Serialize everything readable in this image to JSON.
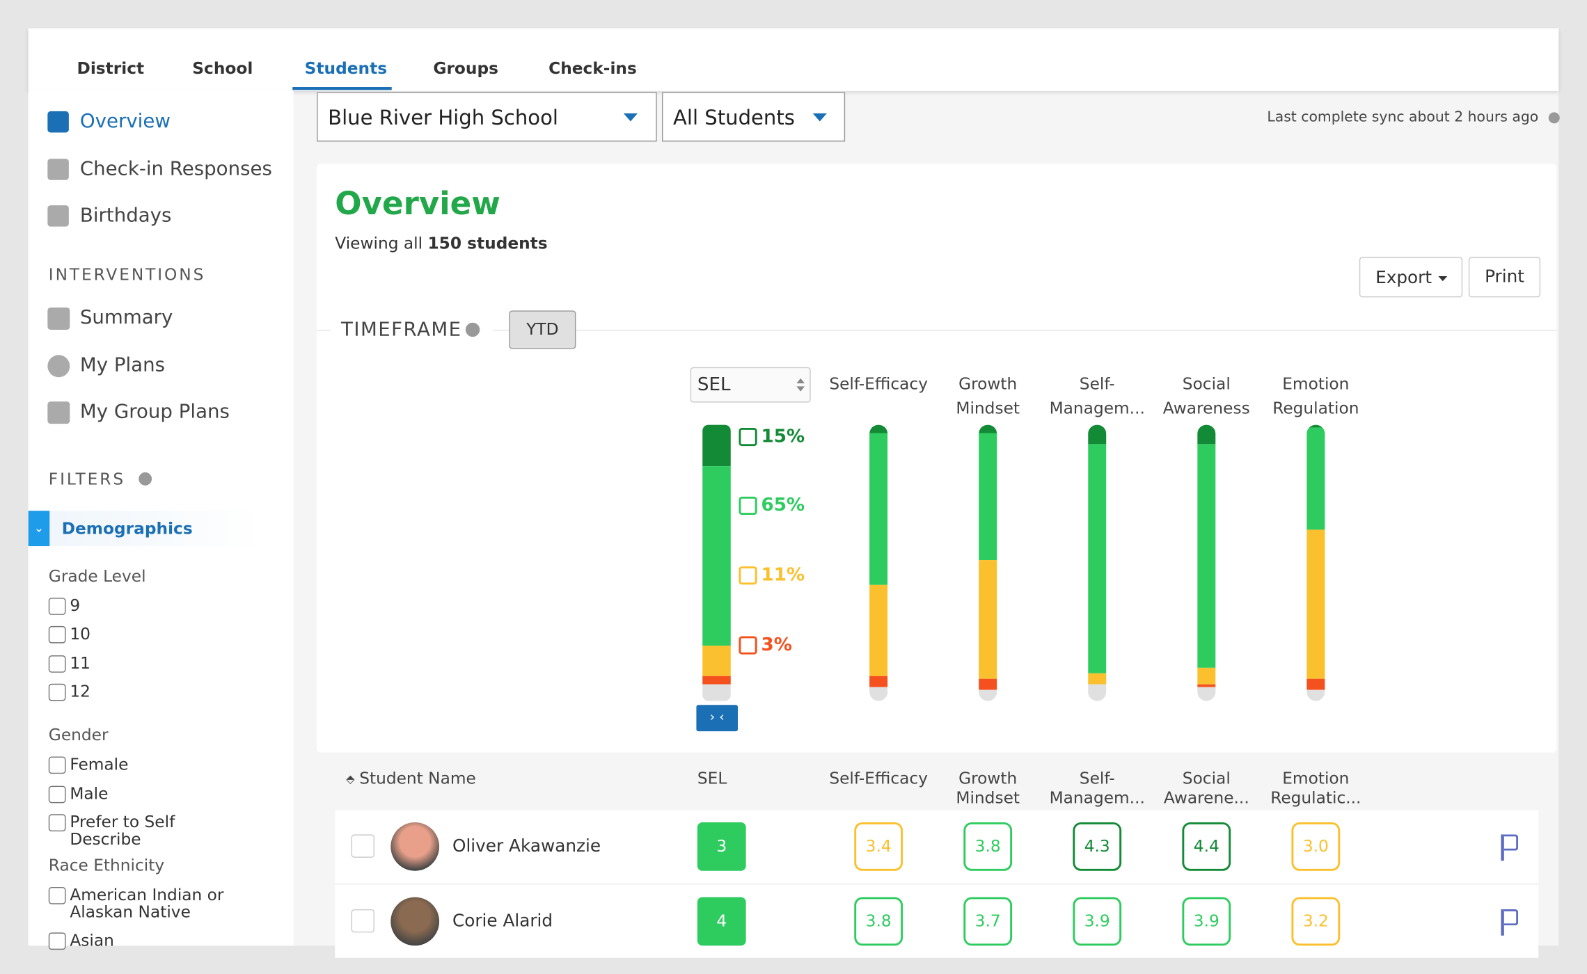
{
  "tabs": [
    "District",
    "School",
    "Students",
    "Groups",
    "Check-ins"
  ],
  "sidebar": {
    "nav": [
      "Overview",
      "Check-in Responses",
      "Birthdays"
    ],
    "interventions_heading": "INTERVENTIONS",
    "interventions": [
      "Summary",
      "My Plans",
      "My Group Plans"
    ],
    "filters_heading": "FILTERS",
    "filter_group": "Demographics",
    "sections": [
      {
        "title": "Grade Level",
        "options": [
          "9",
          "10",
          "11",
          "12"
        ]
      },
      {
        "title": "Gender",
        "options": [
          "Female",
          "Male",
          "Prefer to Self Describe"
        ]
      },
      {
        "title": "Race Ethnicity",
        "options": [
          "American Indian or Alaskan Native",
          "Asian"
        ]
      }
    ]
  },
  "toolbar": {
    "school": "Blue River High School",
    "group": "All Students",
    "sync": "Last complete sync about 2 hours ago"
  },
  "overview": {
    "title": "Overview",
    "subtitle_prefix": "Viewing all",
    "subtitle_count": "150 students",
    "export": "Export",
    "print": "Print",
    "timeframe": "TIMEFRAME",
    "timeframe_value": "YTD"
  },
  "chart": {
    "type": "stacked-bar",
    "categories": [
      "SEL",
      "Self-Efficacy",
      "Growth Mindset",
      "Self-Managem...",
      "Social Awareness",
      "Emotion Regulation"
    ],
    "ylim": [
      0,
      100
    ],
    "series": [
      {
        "color": "#138a36",
        "values": [
          15,
          3,
          3,
          7,
          7,
          1
        ],
        "value_labels": [
          "15%",
          null,
          null,
          null,
          null,
          null
        ]
      },
      {
        "color": "#2ecc5f",
        "values": [
          65,
          55,
          46,
          83,
          81,
          37
        ],
        "value_labels": [
          "65%",
          null,
          null,
          null,
          null,
          null
        ]
      },
      {
        "color": "#fbc02d",
        "values": [
          11,
          33,
          43,
          4,
          6,
          54
        ],
        "value_labels": [
          "11%",
          null,
          null,
          null,
          null,
          null
        ]
      },
      {
        "color": "#f4511e",
        "values": [
          3,
          4,
          4,
          0,
          1,
          4
        ],
        "value_labels": [
          "3%",
          null,
          null,
          null,
          null,
          null
        ]
      },
      {
        "color": "#e0e0e0",
        "values": [
          6,
          5,
          4,
          6,
          5,
          4
        ]
      }
    ]
  },
  "table": {
    "columns": [
      "Student Name",
      "SEL",
      "Self-Efficacy",
      "Growth Mindset",
      "Self-Managem...",
      "Social Awarene...",
      "Emotion Regulatic..."
    ],
    "rows": [
      [
        "Oliver Akawanzie",
        "3",
        "3.4",
        "3.8",
        "4.3",
        "4.4",
        "3.0"
      ],
      [
        "Corie Alarid",
        "4",
        "3.8",
        "3.7",
        "3.9",
        "3.9",
        "3.2"
      ]
    ]
  }
}
